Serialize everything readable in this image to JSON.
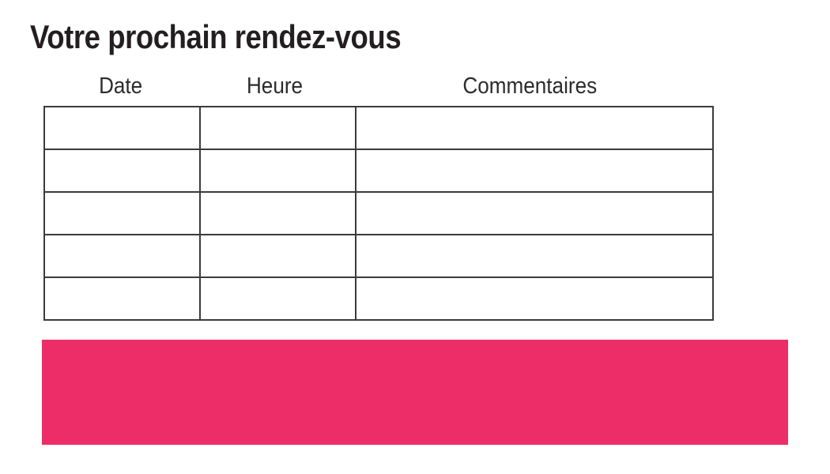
{
  "page": {
    "title": "Votre prochain rendez-vous"
  },
  "table": {
    "columns": [
      {
        "key": "date",
        "label": "Date"
      },
      {
        "key": "heure",
        "label": "Heure"
      },
      {
        "key": "commentaires",
        "label": "Commentaires"
      }
    ],
    "row_count": 5,
    "cells": [
      [
        "",
        "",
        ""
      ],
      [
        "",
        "",
        ""
      ],
      [
        "",
        "",
        ""
      ],
      [
        "",
        "",
        ""
      ],
      [
        "",
        "",
        ""
      ]
    ]
  },
  "colors": {
    "accent_pink": "#ED2D68",
    "title_text": "#231F20",
    "header_text": "#2B2B2B",
    "table_border": "#3B3B3B"
  }
}
